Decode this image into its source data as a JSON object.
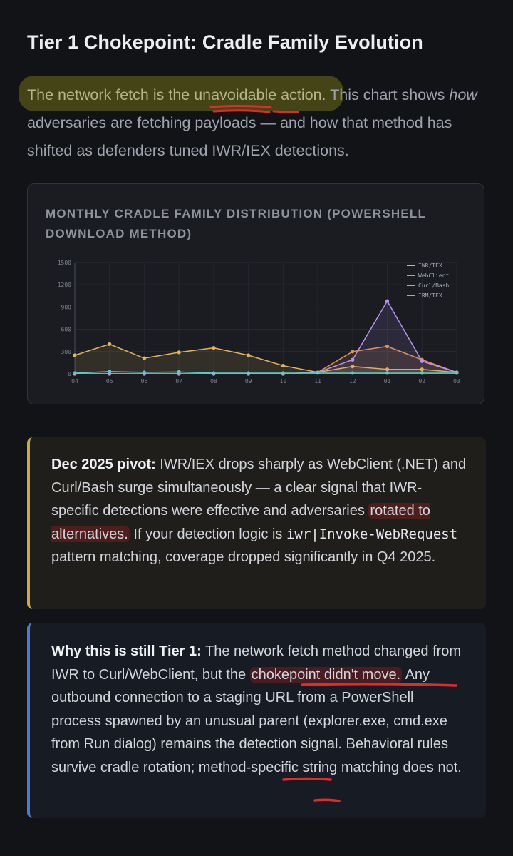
{
  "article": {
    "title": "Tier 1 Chokepoint: Cradle Family Evolution",
    "intro": {
      "highlighted": "The network fetch is the unavoidable action.",
      "rest1": " This chart shows ",
      "em": "how",
      "rest2": " adversaries are fetching payloads — and how that method has shifted as defenders tuned IWR/IEX detections."
    }
  },
  "chart_data": {
    "type": "line",
    "title": "MONTHLY CRADLE FAMILY DISTRIBUTION (POWERSHELL DOWNLOAD METHOD)",
    "categories": [
      "04",
      "05",
      "06",
      "07",
      "08",
      "09",
      "10",
      "11",
      "12",
      "01",
      "02",
      "03"
    ],
    "ylim": [
      0,
      1500
    ],
    "yticks": [
      0,
      300,
      600,
      900,
      1200,
      1500
    ],
    "grid": true,
    "legend_position": "top-right",
    "series": [
      {
        "name": "IWR/IEX",
        "color": "#e3b45a",
        "values": [
          250,
          400,
          210,
          290,
          350,
          250,
          110,
          20,
          100,
          60,
          60,
          20
        ]
      },
      {
        "name": "WebClient",
        "color": "#e4934a",
        "values": [
          0,
          0,
          0,
          0,
          0,
          0,
          0,
          20,
          300,
          370,
          190,
          20
        ]
      },
      {
        "name": "Curl/Bash",
        "color": "#b893f0",
        "values": [
          0,
          0,
          0,
          0,
          0,
          0,
          0,
          20,
          190,
          980,
          170,
          20
        ]
      },
      {
        "name": "IRM/IEX",
        "color": "#5ccbc2",
        "values": [
          10,
          30,
          20,
          25,
          10,
          10,
          10,
          10,
          10,
          10,
          10,
          10
        ]
      }
    ]
  },
  "callout_pivot": {
    "bold": "Dec 2025 pivot:",
    "t1": " IWR/IEX drops sharply as WebClient (.NET) and Curl/Bash surge simultaneously — a clear signal that IWR-specific detections were effective and adversaries ",
    "mark": "rotated to alternatives.",
    "t2": " If your detection logic is ",
    "code": "iwr|Invoke-WebRequest",
    "t3": " pattern matching, coverage dropped significantly in Q4 2025."
  },
  "callout_tier": {
    "bold": "Why this is still Tier 1:",
    "t1": " The network fetch method changed from IWR to Curl/WebClient, but the ",
    "mark": "chokepoint didn't move.",
    "t2": " Any outbound connection to a staging URL from a PowerShell process spawned by an unusual parent (explorer.exe, cmd.exe from Run dialog) remains the detection signal. Behavioral rules survive cradle rotation; method-specific string matching does not."
  }
}
